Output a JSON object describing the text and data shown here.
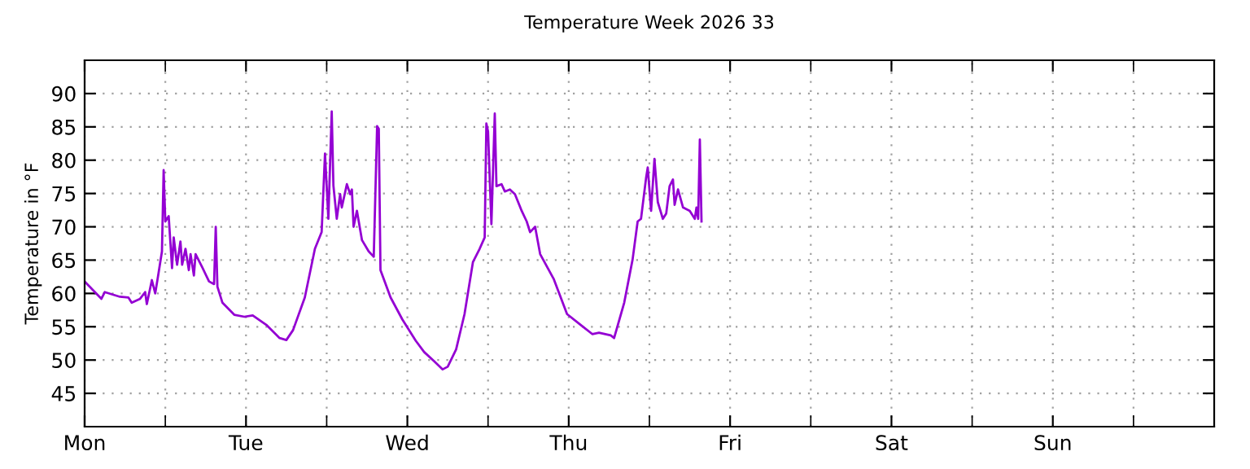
{
  "chart_data": {
    "type": "line",
    "title": "Temperature Week 2026 33",
    "ylabel": "Temperature in °F",
    "categories": [
      "Mon",
      null,
      null,
      null,
      null,
      null,
      null,
      null,
      null,
      null,
      null,
      null,
      null,
      null,
      null,
      null,
      null,
      null,
      null,
      null,
      null,
      null,
      null,
      null,
      null,
      null,
      null,
      null,
      null,
      null,
      null,
      null,
      null,
      null,
      null,
      null,
      null,
      null,
      null,
      null,
      null,
      null,
      null,
      null,
      null,
      null,
      null,
      null,
      null,
      null,
      null,
      null,
      null,
      null,
      null,
      null,
      null,
      null,
      null,
      null,
      null,
      null,
      null,
      null,
      null,
      null,
      null,
      null,
      null,
      null,
      null,
      null,
      null,
      null,
      null,
      null,
      null,
      null,
      null,
      null,
      null,
      null,
      null,
      null,
      null,
      null,
      null,
      null,
      null,
      null,
      null,
      null,
      null,
      null,
      null,
      null,
      "Tue",
      null,
      null,
      null,
      null,
      null,
      null,
      null,
      null,
      null,
      null,
      null,
      null,
      null,
      null,
      null,
      null,
      null,
      null,
      null,
      null,
      null,
      null,
      null,
      null,
      null,
      null,
      null,
      null,
      null,
      null,
      null,
      null,
      null,
      null,
      null,
      null,
      null,
      null,
      null,
      null,
      null,
      null,
      null,
      null,
      null,
      null,
      null,
      null,
      null,
      null,
      null,
      null,
      null,
      null,
      null,
      null,
      null,
      null,
      null,
      null,
      null,
      null,
      null,
      null,
      null,
      null,
      null,
      null,
      null,
      null,
      null,
      null,
      null,
      null,
      null,
      null,
      null,
      null,
      null,
      null,
      null,
      null,
      null,
      null,
      null,
      null,
      null,
      null,
      null,
      null,
      null,
      null,
      null,
      null,
      null,
      "Wed",
      null,
      null,
      null,
      null,
      null,
      null,
      null,
      null,
      null,
      null,
      null,
      null,
      null,
      null,
      null,
      null,
      null,
      null,
      null,
      null,
      null,
      null,
      null,
      null,
      null,
      null,
      null,
      null,
      null,
      null,
      null,
      null,
      null,
      null,
      null,
      null,
      null,
      null,
      null,
      null,
      null,
      null,
      null,
      null,
      null,
      null,
      null,
      null,
      null,
      null,
      null,
      null,
      null,
      null,
      null,
      null,
      null,
      null,
      null,
      null,
      null,
      null,
      null,
      null,
      null,
      null,
      null,
      null,
      null,
      null,
      null,
      null,
      null,
      null,
      null,
      null,
      null,
      null,
      null,
      null,
      null,
      null,
      null,
      null,
      null,
      null,
      null,
      null,
      null,
      null,
      null,
      null,
      null,
      null,
      null,
      "Thu",
      null,
      null,
      null,
      null,
      null,
      null,
      null,
      null,
      null,
      null,
      null,
      null,
      null,
      null,
      null,
      null,
      null,
      null,
      null,
      null,
      null,
      null,
      null,
      null,
      null,
      null,
      null,
      null,
      null,
      null,
      null,
      null,
      null,
      null,
      null,
      null,
      null,
      null,
      null,
      null,
      null,
      null,
      null,
      null,
      null,
      null,
      null,
      null,
      null,
      null,
      null,
      null,
      null,
      null,
      null,
      null,
      null,
      null,
      null,
      null,
      null,
      null,
      null,
      null,
      null,
      null,
      null,
      null,
      null,
      null,
      null,
      null,
      null,
      null,
      null,
      null,
      null,
      null,
      null,
      null,
      null,
      null,
      null,
      null,
      null,
      null,
      null,
      null,
      null,
      null,
      null,
      null,
      null,
      null,
      null,
      "Fri",
      null,
      null,
      null,
      null,
      null,
      null,
      null,
      null,
      null,
      null,
      null,
      null,
      null,
      null,
      null,
      null,
      null,
      null,
      null,
      null,
      null,
      null,
      null,
      null,
      null,
      null,
      null,
      null,
      null,
      null,
      null,
      null,
      null,
      null,
      null,
      null,
      null,
      null,
      null,
      null,
      null,
      null,
      null,
      null,
      null,
      null,
      null,
      null,
      null,
      null,
      null,
      null,
      null,
      null,
      null,
      null,
      null,
      null,
      null,
      null,
      null,
      null,
      null,
      null,
      null,
      null,
      null,
      null,
      null,
      null,
      null,
      null,
      null,
      null,
      null,
      null,
      null,
      null,
      null,
      null,
      null,
      null,
      null,
      null,
      null,
      null,
      null,
      null,
      null,
      null,
      null,
      null,
      null,
      null,
      null,
      "Sat",
      null,
      null,
      null,
      null,
      null,
      null,
      null,
      null,
      null,
      null,
      null,
      null,
      null,
      null,
      null,
      null,
      null,
      null,
      null,
      null,
      null,
      null,
      null,
      null,
      null,
      null,
      null,
      null,
      null,
      null,
      null,
      null,
      null,
      null,
      null,
      null,
      null,
      null,
      null,
      null,
      null,
      null,
      null,
      null,
      null,
      null,
      null,
      null,
      null,
      null,
      null,
      null,
      null,
      null,
      null,
      null,
      null,
      null,
      null,
      null,
      null,
      null,
      null,
      null,
      null,
      null,
      null,
      null,
      null,
      null,
      null,
      null,
      null,
      null,
      null,
      null,
      null,
      null,
      null,
      null,
      null,
      null,
      null,
      null,
      null,
      null,
      null,
      null,
      null,
      null,
      null,
      null,
      null,
      null,
      null,
      "Sun",
      null,
      null,
      null,
      null,
      null,
      null,
      null,
      null,
      null,
      null,
      null,
      null,
      null,
      null,
      null,
      null,
      null,
      null,
      null,
      null,
      null,
      null,
      null,
      null,
      null,
      null,
      null,
      null,
      null,
      null,
      null,
      null,
      null,
      null,
      null,
      null,
      null,
      null,
      null,
      null,
      null,
      null,
      null,
      null,
      null,
      null,
      null,
      null,
      null,
      null,
      null,
      null,
      null,
      null,
      null,
      null,
      null,
      null,
      null,
      null,
      null,
      null,
      null,
      null,
      null,
      null,
      null,
      null,
      null,
      null,
      null,
      null,
      null,
      null,
      null,
      null,
      null,
      null,
      null,
      null,
      null,
      null,
      null,
      null,
      null,
      null,
      null,
      null,
      null,
      null,
      null,
      null,
      null,
      null,
      null
    ],
    "ylim": [
      40,
      95
    ],
    "yticks": [
      45,
      50,
      55,
      60,
      65,
      70,
      75,
      80,
      85,
      90
    ],
    "grid": true,
    "marker": "none",
    "line_style": "solid",
    "series": [
      {
        "color": "#9400d3",
        "values": [
          61.8,
          null,
          null,
          null,
          null,
          null,
          null,
          null,
          null,
          null,
          59.2,
          null,
          60.2,
          null,
          null,
          null,
          null,
          null,
          null,
          null,
          null,
          59.5,
          null,
          null,
          null,
          null,
          59.4,
          null,
          58.6,
          null,
          null,
          null,
          null,
          59.2,
          null,
          null,
          60.2,
          58.4,
          null,
          null,
          62.0,
          null,
          60.0,
          null,
          63.1,
          null,
          66.3,
          78.5,
          70.8,
          null,
          71.6,
          null,
          63.8,
          68.4,
          null,
          64.3,
          null,
          67.8,
          64.3,
          null,
          66.7,
          null,
          63.5,
          65.9,
          null,
          62.7,
          65.9,
          null,
          null,
          null,
          63.9,
          null,
          null,
          null,
          61.8,
          null,
          null,
          61.4,
          70.0,
          61.0,
          null,
          null,
          58.6,
          null,
          null,
          null,
          null,
          null,
          null,
          56.8,
          null,
          null,
          null,
          null,
          null,
          56.5,
          null,
          null,
          null,
          null,
          56.7,
          null,
          null,
          null,
          null,
          null,
          null,
          null,
          55.3,
          null,
          null,
          null,
          null,
          null,
          null,
          null,
          53.3,
          null,
          null,
          null,
          53.0,
          null,
          null,
          null,
          54.5,
          null,
          null,
          null,
          null,
          null,
          null,
          59.4,
          null,
          null,
          null,
          null,
          null,
          66.7,
          null,
          null,
          null,
          69.2,
          null,
          81.0,
          null,
          71.2,
          null,
          87.3,
          76.2,
          null,
          71.2,
          null,
          74.9,
          72.9,
          null,
          null,
          76.4,
          null,
          74.9,
          75.6,
          70.0,
          null,
          72.4,
          null,
          null,
          68.0,
          null,
          null,
          null,
          66.3,
          null,
          null,
          65.5,
          null,
          85.1,
          84.7,
          63.5,
          null,
          null,
          null,
          null,
          null,
          59.4,
          null,
          null,
          null,
          null,
          null,
          null,
          56.1,
          null,
          null,
          null,
          null,
          null,
          null,
          null,
          52.9,
          null,
          null,
          null,
          null,
          51.2,
          null,
          null,
          null,
          null,
          null,
          49.8,
          null,
          null,
          null,
          null,
          48.6,
          null,
          null,
          49.0,
          null,
          null,
          null,
          null,
          51.6,
          null,
          null,
          null,
          null,
          56.9,
          null,
          null,
          null,
          null,
          64.7,
          null,
          null,
          null,
          66.7,
          null,
          null,
          68.4,
          85.5,
          84.3,
          null,
          70.4,
          null,
          87.0,
          76.1,
          null,
          null,
          76.4,
          null,
          75.3,
          null,
          null,
          75.6,
          null,
          null,
          74.9,
          null,
          null,
          null,
          72.4,
          null,
          null,
          70.8,
          null,
          69.2,
          null,
          null,
          70.0,
          null,
          null,
          65.9,
          null,
          null,
          null,
          null,
          null,
          null,
          null,
          62.2,
          null,
          null,
          null,
          null,
          null,
          null,
          null,
          56.9,
          null,
          null,
          null,
          null,
          null,
          null,
          null,
          55.3,
          null,
          null,
          null,
          null,
          null,
          null,
          53.9,
          null,
          null,
          null,
          54.1,
          null,
          null,
          null,
          null,
          null,
          null,
          53.7,
          null,
          53.3,
          null,
          null,
          null,
          null,
          null,
          58.6,
          null,
          null,
          null,
          null,
          65.1,
          null,
          null,
          70.8,
          null,
          71.2,
          null,
          null,
          77.3,
          78.9,
          null,
          72.4,
          null,
          80.2,
          null,
          73.7,
          null,
          null,
          71.2,
          null,
          72.0,
          null,
          76.1,
          null,
          77.1,
          73.3,
          null,
          75.6,
          null,
          null,
          72.9,
          null,
          null,
          null,
          72.4,
          null,
          null,
          71.2,
          72.9,
          71.2,
          83.1,
          70.8,
          null,
          null,
          null,
          null,
          null,
          null,
          null,
          null,
          null,
          null,
          null,
          null,
          null,
          null,
          null,
          null,
          null,
          null,
          null,
          null,
          null,
          null,
          null,
          null,
          null,
          null,
          null,
          null,
          null,
          null,
          null,
          null,
          null,
          null,
          null,
          null,
          null,
          null,
          null,
          null,
          null,
          null,
          null,
          null,
          null,
          null,
          null,
          null,
          null,
          null,
          null,
          null,
          null,
          null,
          null,
          null,
          null,
          null,
          null,
          null,
          null,
          null,
          null,
          null,
          null,
          null,
          null,
          null,
          null,
          null,
          null,
          null,
          null,
          null,
          null,
          null,
          null,
          null,
          null,
          null,
          null,
          null,
          null,
          null,
          null,
          null,
          null,
          null,
          null,
          null,
          null,
          null,
          null,
          null,
          null,
          null,
          null,
          null,
          null,
          null,
          null,
          null,
          null,
          null,
          null,
          null,
          null,
          null,
          null,
          null,
          null,
          null,
          null,
          null,
          null,
          null,
          null,
          null,
          null,
          null,
          null,
          null,
          null,
          null,
          null,
          null,
          null,
          null,
          null,
          null,
          null,
          null,
          null,
          null,
          null,
          null,
          null,
          null,
          null,
          null,
          null,
          null,
          null,
          null,
          null,
          null,
          null,
          null,
          null,
          null,
          null,
          null,
          null,
          null,
          null,
          null,
          null,
          null,
          null,
          null,
          null,
          null,
          null,
          null,
          null,
          null,
          null,
          null,
          null,
          null,
          null,
          null,
          null,
          null,
          null,
          null,
          null,
          null,
          null,
          null,
          null,
          null,
          null,
          null,
          null,
          null,
          null,
          null,
          null,
          null,
          null,
          null,
          null,
          null,
          null,
          null,
          null,
          null,
          null,
          null,
          null,
          null,
          null,
          null,
          null,
          null,
          null,
          null,
          null,
          null,
          null,
          null,
          null,
          null,
          null,
          null,
          null,
          null,
          null,
          null,
          null,
          null,
          null,
          null,
          null,
          null,
          null,
          null,
          null,
          null,
          null,
          null,
          null,
          null,
          null,
          null,
          null,
          null,
          null,
          null,
          null,
          null,
          null,
          null,
          null,
          null,
          null,
          null,
          null,
          null,
          null,
          null,
          null,
          null,
          null,
          null,
          null,
          null,
          null,
          null,
          null,
          null,
          null,
          null,
          null,
          null,
          null,
          null,
          null,
          null,
          null,
          null,
          null,
          null,
          null,
          null,
          null,
          null,
          null,
          null,
          null,
          null,
          null,
          null,
          null,
          null,
          null,
          null,
          null,
          null,
          null,
          null,
          null,
          null,
          null,
          null,
          null,
          null,
          null,
          null,
          null,
          null,
          null,
          null
        ]
      }
    ]
  }
}
